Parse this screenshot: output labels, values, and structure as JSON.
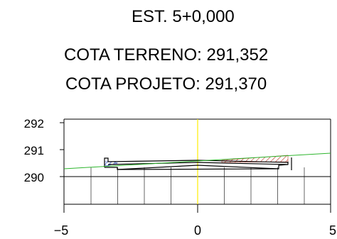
{
  "header": {
    "station": "EST. 5+0,000",
    "terrain_elevation": "COTA TERRENO: 291,352",
    "project_elevation": "COTA PROJETO: 291,370"
  },
  "axes": {
    "x_ticks": [
      "−5",
      "0",
      "5"
    ],
    "y_ticks": [
      "292",
      "291",
      "290"
    ]
  },
  "colors": {
    "terrain_line": "#2db52d",
    "centerline": "#ffee00",
    "fill_hatch": "#c0392b",
    "cut_hatch": "#1f3fbf",
    "grid": "#000000"
  }
}
